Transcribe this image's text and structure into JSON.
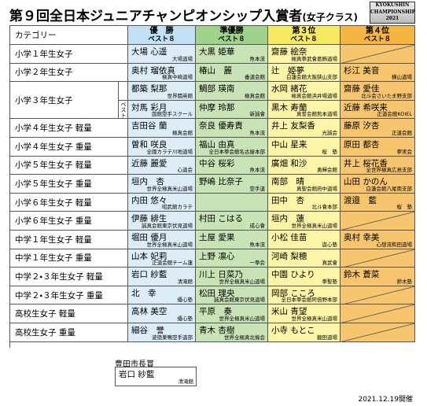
{
  "header": {
    "title": "第９回全日本ジュニアチャンピオンシップ入賞者",
    "subtitle": "(女子クラス)",
    "logo": [
      "KYOKUSHIN",
      "CHAMPIONSHIP",
      "2021"
    ]
  },
  "table": {
    "category_header": "カテゴリー",
    "columns": [
      {
        "title": "優　勝",
        "sub": "ベスト８"
      },
      {
        "title": "準優勝",
        "sub": "ベスト８"
      },
      {
        "title": "第３位",
        "sub": "ベスト８"
      },
      {
        "title": "第４位",
        "sub": "ベスト８"
      }
    ],
    "rows": [
      {
        "category": "小学１年生女子",
        "places": [
          {
            "name": "大場 心遥",
            "org": "大場道場"
          },
          {
            "name": "大黒 姫華",
            "org": "魚本流"
          },
          {
            "name": "齋藤 絵奈",
            "org": "極真拳武會葛飾道場"
          },
          null
        ]
      },
      {
        "category": "小学２年生女子",
        "places": [
          {
            "name": "奥村 瑠依真",
            "org": "極真中崎道場"
          },
          {
            "name": "椿山　麗",
            "org": "養道会館"
          },
          {
            "name": "辻　姫夢",
            "org": "白蓮会館大阪狭山支部"
          },
          {
            "name": "杉江 美音",
            "org": "横山道場"
          }
        ]
      },
      {
        "category": "小学３年生女子",
        "places": [
          {
            "name": "都築 梨那",
            "org": "世界闘英館"
          },
          {
            "name": "鯛部 瑛南",
            "org": "極真会館"
          },
          {
            "name": "水岡 緒花",
            "org": "極真会館浜井場道場"
          },
          {
            "name": "齋藤 愛佳",
            "org": "北斗会さいたま野支部"
          }
        ],
        "best8": {
          "label": "ベスト８",
          "places": [
            {
              "name": "対馬 彩月",
              "org": "函館空手スクール"
            },
            {
              "name": "仲摩 玲那",
              "org": "新誠會"
            },
            {
              "name": "黒木 寿蘭",
              "org": "真誓会館熊本道場"
            },
            {
              "name": "近藤 希咲来",
              "org": "正道会館KOIEL"
            }
          ]
        }
      },
      {
        "category": "小学４年生女子 軽量",
        "places": [
          {
            "name": "吉田谷 蘭",
            "org": "極真会館"
          },
          {
            "name": "奈良 優寿責",
            "org": "魚本流"
          },
          {
            "name": "井上 友梨香",
            "org": "光誠会"
          },
          {
            "name": "藤原 汐杏",
            "org": "正道会館"
          }
        ]
      },
      {
        "category": "小学４年生女子 重量",
        "places": [
          {
            "name": "曽和 咲良",
            "org": "全國カラテ川地道場"
          },
          {
            "name": "福山 由真",
            "org": "全日本拳会館名古屋本部"
          },
          {
            "name": "中山 星来",
            "org": "桜　塾"
          },
          {
            "name": "原田 都杏",
            "org": "拳実会"
          }
        ]
      },
      {
        "category": "小学５年生女子 軽量",
        "places": [
          {
            "name": "近藤 麗愛",
            "org": "心道会"
          },
          {
            "name": "中谷 桜彩",
            "org": "魚本流"
          },
          {
            "name": "廣畑 和沙",
            "org": "勇輝会館"
          },
          {
            "name": "井上 桜花香",
            "org": "全世界極真広島支部"
          }
        ]
      },
      {
        "category": "小学５年生女子 重量",
        "places": [
          {
            "name": "垣内　杏",
            "org": "世界全極真米山道場"
          },
          {
            "name": "野嶋 比奈子",
            "org": "空手道"
          },
          {
            "name": "南部　晴",
            "org": "真聖会館府中道場"
          },
          {
            "name": "山田 かのん",
            "org": "白蓮会館八尾南支部"
          }
        ]
      },
      {
        "category": "小学６年生女子 軽量",
        "places": [
          {
            "name": "内田 悠々",
            "org": "昭武館カラテ"
          },
          null,
          {
            "name": "田中　杏",
            "org": "北斗會本部"
          },
          {
            "name": "渡邉　藍",
            "org": "桜　塾"
          }
        ]
      },
      {
        "category": "小学６年生女子 重量",
        "places": [
          {
            "name": "伊藤 緋生",
            "org": "誠真会館東京伏見道場"
          },
          {
            "name": "村田 こはる",
            "org": "成心會"
          },
          {
            "name": "垣内　蓮",
            "org": "世界全極真米山道場"
          },
          null
        ]
      },
      {
        "category": "中学１年生女子 軽量",
        "places": [
          {
            "name": "堀田 優月",
            "org": "世界全極真米山道場"
          },
          {
            "name": "土屋 愛果",
            "org": "魚本流"
          },
          {
            "name": "小松 佳苗",
            "org": "遊心塾"
          },
          {
            "name": "奥村 幸美",
            "org": "心想流和田道場"
          }
        ]
      },
      {
        "category": "中学１年生女子 重量",
        "places": [
          {
            "name": "山本 妃莉",
            "org": "正道会館チーム蓮"
          },
          {
            "name": "上野 凛心",
            "org": "一拳会"
          },
          {
            "name": "河崎 梨穂",
            "org": "真武會"
          },
          null
        ]
      },
      {
        "category": "中学２・３年生女子 軽量",
        "places": [
          {
            "name": "岩口 紗藍",
            "org": "清滝館"
          },
          {
            "name": "川上 日菜乃",
            "org": "世界全極真米山道場"
          },
          {
            "name": "中園 ひより",
            "org": "拳聖塾"
          },
          {
            "name": "鈴木 蒼菜",
            "org": "鈴木塾"
          }
        ]
      },
      {
        "category": "中学２・３年生女子 重量",
        "places": [
          {
            "name": "北　幸",
            "org": "優心塾"
          },
          {
            "name": "松田 理央",
            "org": "誠真会館東京伏見道場"
          },
          {
            "name": "岡部 こころ",
            "org": "全日本拳会館阿倍野本部"
          },
          null
        ]
      },
      {
        "category": "高校生女子 軽量",
        "places": [
          {
            "name": "高林 美空",
            "org": "優心塾"
          },
          {
            "name": "平原　奏",
            "org": "世界全極真米山道場"
          },
          {
            "name": "米山 青望",
            "org": "世界全極真米山道場"
          },
          null
        ]
      },
      {
        "category": "高校生女子 重量",
        "places": [
          {
            "name": "細谷　誉",
            "org": "波徳巣鴨空手道部"
          },
          {
            "name": "青木 杏樹",
            "org": "世界全極真北條会"
          },
          {
            "name": "小寺 もとこ",
            "org": "鍛田道場"
          },
          null
        ]
      }
    ]
  },
  "award": {
    "title": "豊田市長賞",
    "name": "岩口 紗藍",
    "org": "清滝館"
  },
  "footer": {
    "date": "2021.12.19開催"
  }
}
